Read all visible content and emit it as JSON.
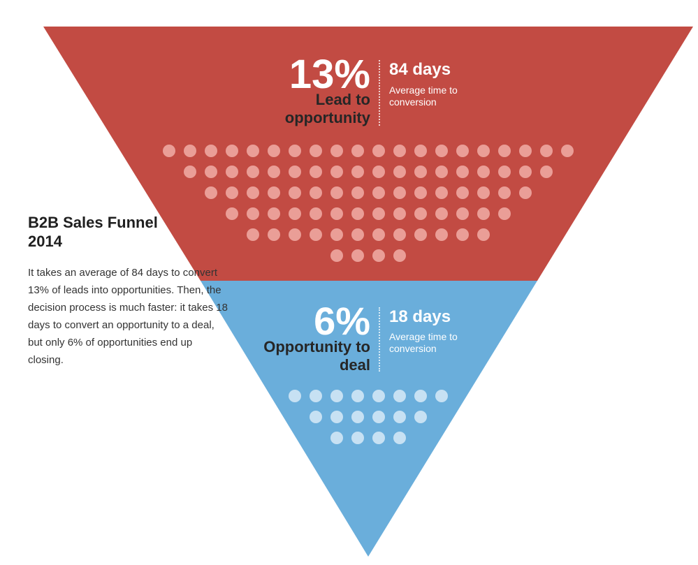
{
  "colors": {
    "top_stage": "#c24b43",
    "bottom_stage": "#6aaedb",
    "dot_top": "#ea9e97",
    "dot_bottom": "#c7e1f3"
  },
  "side": {
    "title": "B2B Sales Funnel 2014",
    "body": "It takes an average of 84 days to convert 13% of leads into opportunities. Then, the decision process is much faster: it takes 18 days to convert an opportunity to a deal, but only 6% of opportunities end up closing."
  },
  "stages": [
    {
      "percent": "13%",
      "label": "Lead to opportunity",
      "days": "84 days",
      "days_caption": "Average time to conversion",
      "dot_rows": [
        20,
        18,
        16,
        14,
        12,
        4
      ]
    },
    {
      "percent": "6%",
      "label": "Opportunity to deal",
      "days": "18 days",
      "days_caption": "Average time to conversion",
      "dot_rows": [
        8,
        6,
        4
      ]
    }
  ]
}
